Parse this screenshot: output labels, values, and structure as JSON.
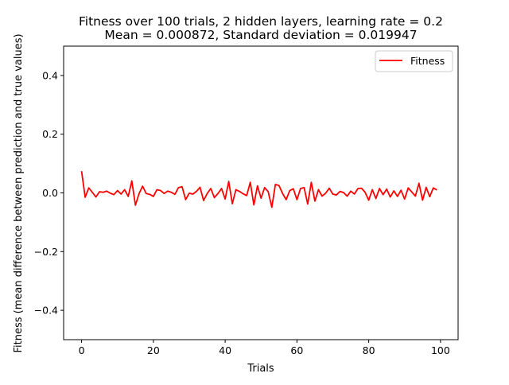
{
  "chart_data": {
    "type": "line",
    "title_line1": "Fitness over 100 trials, 2 hidden layers, learning rate = 0.2",
    "title_line2": "Mean = 0.000872, Standard deviation = 0.019947",
    "xlabel": "Trials",
    "ylabel": "Fitness (mean difference between prediction and true values)",
    "xlim": [
      -5,
      104.9
    ],
    "ylim": [
      -0.5,
      0.5
    ],
    "xticks": [
      0,
      20,
      40,
      60,
      80,
      100
    ],
    "yticks": [
      -0.4,
      -0.2,
      0.0,
      0.2,
      0.4
    ],
    "xtick_labels": [
      "0",
      "20",
      "40",
      "60",
      "80",
      "100"
    ],
    "ytick_labels": [
      "−0.4",
      "−0.2",
      "0.0",
      "0.2",
      "0.4"
    ],
    "grid": false,
    "legend_position": "top-right",
    "series": [
      {
        "name": "Fitness",
        "color": "#ff0000",
        "values": [
          0.074,
          -0.015,
          0.017,
          0.002,
          -0.014,
          0.004,
          0.002,
          0.006,
          -0.001,
          -0.006,
          0.008,
          -0.004,
          0.011,
          -0.012,
          0.041,
          -0.042,
          -0.003,
          0.023,
          -0.002,
          -0.005,
          -0.012,
          0.011,
          0.008,
          -0.002,
          0.006,
          0.002,
          -0.005,
          0.018,
          0.021,
          -0.023,
          -0.001,
          -0.004,
          0.005,
          0.019,
          -0.026,
          -0.002,
          0.015,
          -0.016,
          -0.002,
          0.015,
          -0.021,
          0.039,
          -0.037,
          0.011,
          0.005,
          -0.003,
          -0.009,
          0.036,
          -0.041,
          0.024,
          -0.018,
          0.018,
          0.004,
          -0.049,
          0.029,
          0.025,
          -0.002,
          -0.023,
          0.008,
          0.014,
          -0.023,
          0.015,
          0.018,
          -0.038,
          0.036,
          -0.028,
          0.011,
          -0.011,
          -0.001,
          0.016,
          -0.004,
          -0.007,
          0.005,
          0.001,
          -0.011,
          0.006,
          -0.004,
          0.015,
          0.016,
          0.002,
          -0.025,
          0.011,
          -0.019,
          0.015,
          -0.006,
          0.013,
          -0.014,
          0.007,
          -0.012,
          0.009,
          -0.021,
          0.017,
          0.003,
          -0.011,
          0.033,
          -0.025,
          0.019,
          -0.013,
          0.017,
          0.01
        ]
      }
    ]
  }
}
